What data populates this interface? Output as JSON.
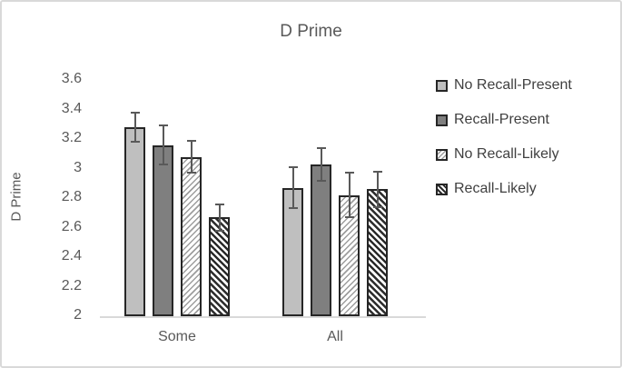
{
  "chart_data": {
    "type": "bar",
    "title": "D Prime",
    "ylabel": "D Prime",
    "xlabel": "",
    "categories": [
      "Some",
      "All"
    ],
    "series": [
      {
        "name": "No Recall-Present",
        "pattern": "solid-light",
        "fill": "#bfbfbf",
        "values": [
          3.28,
          2.87
        ],
        "errors": [
          0.1,
          0.14
        ]
      },
      {
        "name": "Recall-Present",
        "pattern": "solid-dark",
        "fill": "#7f7f7f",
        "values": [
          3.16,
          3.03
        ],
        "errors": [
          0.13,
          0.11
        ]
      },
      {
        "name": "No Recall-Likely",
        "pattern": "diag-up",
        "fill": "#ffffff",
        "values": [
          3.08,
          2.82
        ],
        "errors": [
          0.11,
          0.15
        ]
      },
      {
        "name": "Recall-Likely",
        "pattern": "diag-down",
        "fill": "#ffffff",
        "values": [
          2.67,
          2.86
        ],
        "errors": [
          0.09,
          0.12
        ]
      }
    ],
    "ylim": [
      2,
      3.6
    ],
    "ytick_step": 0.2,
    "yticks": [
      "3.6",
      "3.4",
      "3.2",
      "3",
      "2.8",
      "2.6",
      "2.4",
      "2.2",
      "2"
    ],
    "legend_position": "right",
    "grid": false,
    "error_bars": true
  },
  "colors": {
    "text": "#595959",
    "legend_text": "#404040",
    "axis_line": "#d9d9d9",
    "bar_border": "#262626",
    "bar_light": "#bfbfbf",
    "bar_dark": "#7f7f7f",
    "hatch_light": "#9d9d9d",
    "hatch_dark": "#2b2b2b",
    "error_bar": "#595959",
    "frame_border": "#d9d9d9"
  }
}
